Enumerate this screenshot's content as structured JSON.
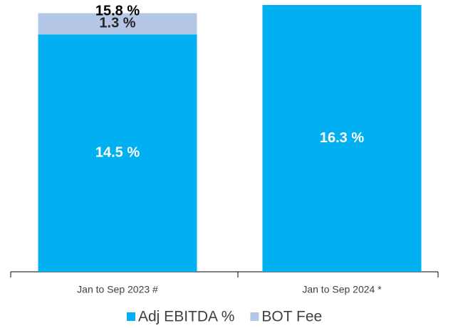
{
  "chart_data": {
    "type": "stacked_bar",
    "categories": [
      "Jan to Sep 2023 #",
      "Jan to Sep 2024 *"
    ],
    "series": [
      {
        "name": "Adj EBITDA %",
        "color": "#00b0f0",
        "values": [
          14.5,
          16.3
        ],
        "value_labels": [
          "14.5 %",
          "16.3  %"
        ],
        "label_color": "#ffffff"
      },
      {
        "name": "BOT Fee",
        "color": "#b4c7e7",
        "values": [
          1.3,
          null
        ],
        "value_labels": [
          "1.3 %",
          null
        ],
        "label_color": "#262626"
      }
    ],
    "annotations": [
      "15.8 %"
    ],
    "legend": "bottom"
  }
}
